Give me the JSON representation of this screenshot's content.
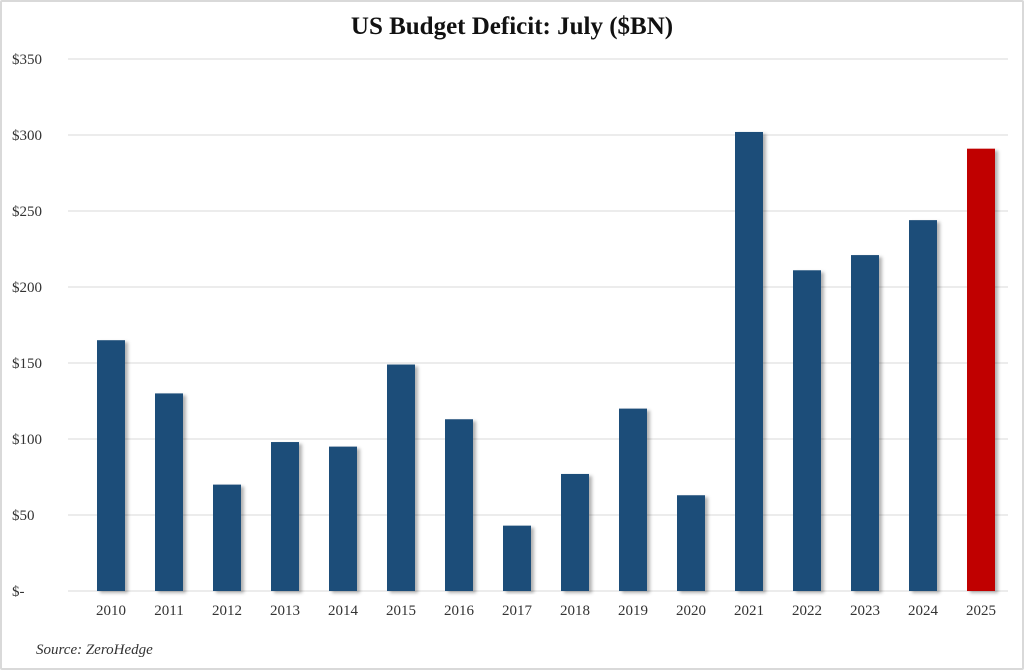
{
  "chart_data": {
    "type": "bar",
    "title": "US Budget Deficit: July ($BN)",
    "xlabel": "",
    "ylabel": "",
    "categories": [
      "2010",
      "2011",
      "2012",
      "2013",
      "2014",
      "2015",
      "2016",
      "2017",
      "2018",
      "2019",
      "2020",
      "2021",
      "2022",
      "2023",
      "2024",
      "2025"
    ],
    "values": [
      165,
      130,
      70,
      98,
      95,
      149,
      113,
      43,
      77,
      120,
      63,
      302,
      211,
      221,
      244,
      291
    ],
    "highlight_category": "2025",
    "ylim": [
      0,
      350
    ],
    "yticks": [
      0,
      50,
      100,
      150,
      200,
      250,
      300,
      350
    ],
    "ytick_labels": [
      "$-",
      "$50",
      "$100",
      "$150",
      "$200",
      "$250",
      "$300",
      "$350"
    ],
    "grid": true,
    "legend": "none",
    "colors": {
      "bar": "#1f4e79",
      "highlight": "#c00000",
      "grid": "#d9d9d9"
    },
    "source": "Source: ZeroHedge"
  }
}
